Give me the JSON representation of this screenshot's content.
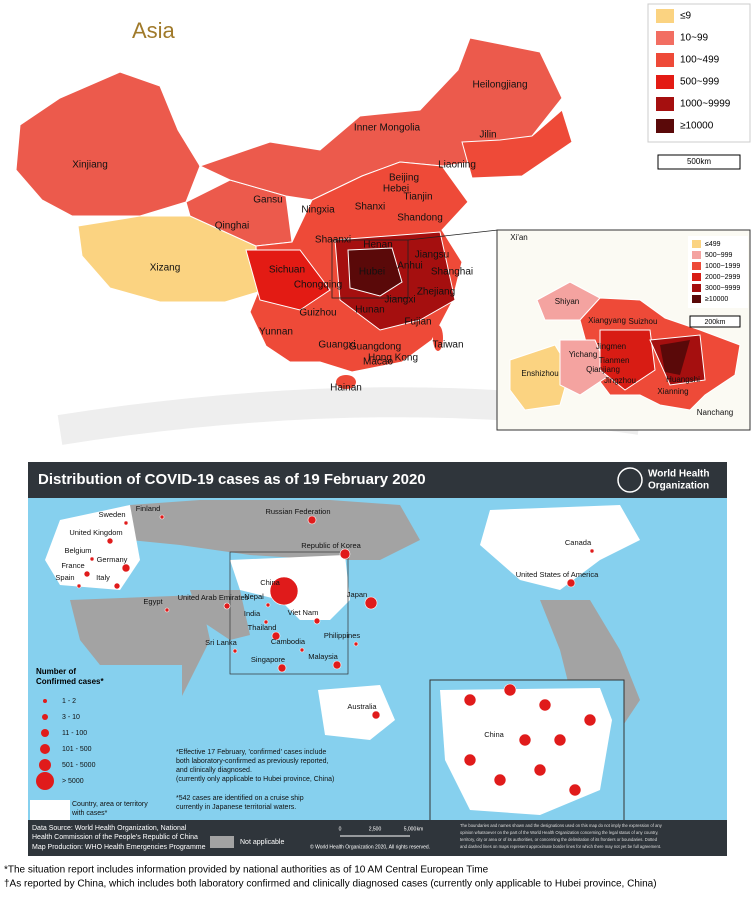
{
  "china_map": {
    "region_label": "Asia",
    "legend": [
      {
        "label": "≤9",
        "color": "#fbd381"
      },
      {
        "label": "10~99",
        "color": "#f26e62"
      },
      {
        "label": "100~499",
        "color": "#ee4a38"
      },
      {
        "label": "500~999",
        "color": "#e31b14"
      },
      {
        "label": "1000~9999",
        "color": "#a50f0f"
      },
      {
        "label": "≥10000",
        "color": "#5a0909"
      }
    ],
    "scale": "500km",
    "provinces": [
      "Xinjiang",
      "Xizang",
      "Qinghai",
      "Gansu",
      "Inner Mongolia",
      "Heilongjiang",
      "Jilin",
      "Liaoning",
      "Beijing",
      "Tianjin",
      "Hebei",
      "Shanxi",
      "Ningxia",
      "Shaanxi",
      "Shandong",
      "Henan",
      "Jiangsu",
      "Anhui",
      "Shanghai",
      "Hubei",
      "Sichuan",
      "Chongqing",
      "Zhejiang",
      "Hunan",
      "Guizhou",
      "Jiangxi",
      "Fujian",
      "Yunnan",
      "Guangxi",
      "Guangdong",
      "Hong Kong",
      "Macao",
      "Taiwan",
      "Hainan"
    ],
    "inset": {
      "legend": [
        {
          "label": "≤499",
          "color": "#fbd381"
        },
        {
          "label": "500~999",
          "color": "#f4a3a0"
        },
        {
          "label": "1000~1999",
          "color": "#ee4a38"
        },
        {
          "label": "2000~2999",
          "color": "#d81c14"
        },
        {
          "label": "3000~9999",
          "color": "#a50f0f"
        },
        {
          "label": "≥10000",
          "color": "#5a0909"
        }
      ],
      "scale": "200km",
      "cities": [
        "Xi'an",
        "Shiyan",
        "Xiangyang",
        "Suizhou",
        "Jingmen",
        "Yichang",
        "Tianmen",
        "Qianjiang",
        "Enshizhou",
        "Jingzhou",
        "Huangshi",
        "Xianning",
        "Nanchang"
      ]
    }
  },
  "who_map": {
    "title": "Distribution of COVID-19 cases as of 19 February 2020",
    "logo": [
      "World Health",
      "Organization"
    ],
    "countries": [
      "Russian Federation",
      "Finland",
      "Sweden",
      "United Kingdom",
      "Belgium",
      "Germany",
      "France",
      "Spain",
      "Italy",
      "Egypt",
      "United Arab Emirates",
      "Nepal",
      "India",
      "Sri Lanka",
      "Thailand",
      "Viet Nam",
      "Cambodia",
      "Singapore",
      "Malaysia",
      "Philippines",
      "China",
      "Republic of Korea",
      "Japan",
      "Canada",
      "United States of America",
      "Australia"
    ],
    "inset_label": "China",
    "legend_title": [
      "Number of",
      "Confirmed cases*"
    ],
    "legend": [
      "1 - 2",
      "3 - 10",
      "11 - 100",
      "101 - 500",
      "501 - 5000",
      "> 5000"
    ],
    "country_key": [
      "Country, area or territory",
      "with cases*"
    ],
    "not_applicable": "Not applicable",
    "note1": [
      "*Effective 17 February, 'confirmed' cases include",
      "both laboratory-confirmed as previously reported,",
      "and clinically diagnosed.",
      "(currently only applicable to Hubei province, China)"
    ],
    "note2": [
      "*542 cases are identified on a cruise ship",
      "currently in Japanese territorial waters."
    ],
    "data_source": [
      "Data Source: World Health Organization, National",
      "Health Commission of the People's Republic of China"
    ],
    "map_production": "Map Production: WHO Health Emergencies Programme",
    "scale": [
      "0",
      "2,500",
      "5,000",
      "km"
    ],
    "copyright": "© World Health Organization 2020, All rights reserved.",
    "disclaimer": [
      "The boundaries and names shown and the designations used on this map do not imply the expression of any",
      "opinion whatsoever on the part of the World Health Organization concerning the legal status of any country,",
      "territory, city or area or of its authorities, or concerning the delimitation of its frontiers or boundaries. Dotted",
      "and dashed lines on maps represent approximate border lines for which there may not yet be full agreement."
    ]
  },
  "footnotes": [
    "*The situation report includes information provided by national authorities as of 10 AM Central European Time",
    "†As reported by China, which includes both laboratory confirmed and clinically diagnosed cases (currently only applicable to Hubei province, China)"
  ]
}
